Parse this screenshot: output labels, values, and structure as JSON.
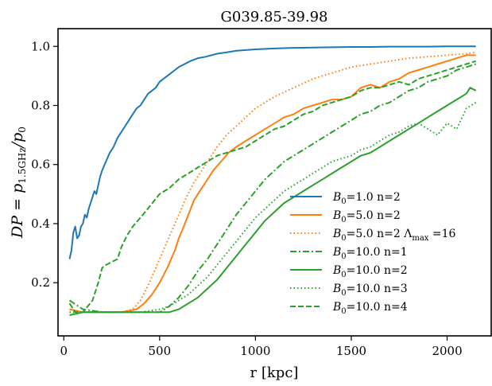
{
  "chart_data": {
    "type": "line",
    "title": "G039.85-39.98",
    "xlabel": "r [kpc]",
    "ylabel": {
      "main": "DP = p",
      "sub": "1.5GHz",
      "rest": "/p",
      "sub2": "0"
    },
    "xlim": [
      -30,
      2230
    ],
    "ylim": [
      0.02,
      1.06
    ],
    "xticks": [
      0,
      500,
      1000,
      1500,
      2000
    ],
    "yticks": [
      0.2,
      0.4,
      0.6,
      0.8,
      1.0
    ],
    "xtick_labels": [
      "0",
      "500",
      "1000",
      "1500",
      "2000"
    ],
    "ytick_labels": [
      "0.2",
      "0.4",
      "0.6",
      "0.8",
      "1.0"
    ],
    "grid": false,
    "legend_position": "lower-right",
    "series": [
      {
        "name": "B0=1.0 n=2",
        "legend": {
          "b": "B",
          "bsub": "0",
          "rest": "=1.0 n=2"
        },
        "color": "#1f77b4",
        "style": "solid",
        "x": [
          30,
          40,
          50,
          60,
          70,
          80,
          90,
          100,
          110,
          120,
          130,
          140,
          150,
          160,
          170,
          180,
          190,
          200,
          220,
          240,
          260,
          280,
          300,
          320,
          340,
          360,
          380,
          400,
          420,
          440,
          460,
          480,
          500,
          520,
          540,
          560,
          580,
          600,
          630,
          660,
          700,
          740,
          800,
          850,
          900,
          1000,
          1100,
          1200,
          1300,
          1400,
          1500,
          1600,
          1700,
          1800,
          1900,
          2000,
          2100,
          2150
        ],
        "y": [
          0.28,
          0.31,
          0.37,
          0.39,
          0.35,
          0.36,
          0.39,
          0.4,
          0.43,
          0.42,
          0.45,
          0.47,
          0.49,
          0.51,
          0.5,
          0.53,
          0.56,
          0.58,
          0.61,
          0.64,
          0.66,
          0.69,
          0.71,
          0.73,
          0.75,
          0.77,
          0.79,
          0.8,
          0.82,
          0.84,
          0.85,
          0.86,
          0.88,
          0.89,
          0.9,
          0.91,
          0.92,
          0.93,
          0.94,
          0.95,
          0.96,
          0.965,
          0.975,
          0.98,
          0.985,
          0.99,
          0.993,
          0.995,
          0.996,
          0.997,
          0.998,
          0.998,
          0.999,
          0.999,
          0.999,
          1.0,
          1.0,
          1.0
        ]
      },
      {
        "name": "B0=5.0 n=2",
        "legend": {
          "b": "B",
          "bsub": "0",
          "rest": "=5.0 n=2"
        },
        "color": "#ff7f0e",
        "style": "solid",
        "x": [
          30,
          100,
          200,
          300,
          380,
          420,
          460,
          500,
          540,
          580,
          600,
          620,
          650,
          680,
          700,
          740,
          780,
          820,
          860,
          900,
          950,
          1000,
          1050,
          1100,
          1150,
          1200,
          1250,
          1300,
          1350,
          1400,
          1450,
          1500,
          1550,
          1600,
          1650,
          1700,
          1750,
          1800,
          1850,
          1900,
          1950,
          2000,
          2050,
          2100,
          2150
        ],
        "y": [
          0.11,
          0.1,
          0.1,
          0.1,
          0.11,
          0.13,
          0.16,
          0.2,
          0.25,
          0.31,
          0.35,
          0.38,
          0.43,
          0.48,
          0.5,
          0.54,
          0.58,
          0.61,
          0.64,
          0.66,
          0.68,
          0.7,
          0.72,
          0.74,
          0.76,
          0.77,
          0.79,
          0.8,
          0.81,
          0.82,
          0.82,
          0.83,
          0.86,
          0.87,
          0.86,
          0.88,
          0.89,
          0.91,
          0.92,
          0.93,
          0.94,
          0.95,
          0.96,
          0.97,
          0.97
        ]
      },
      {
        "name": "B0=5.0 n=2 Λmax =16",
        "legend": {
          "b": "B",
          "bsub": "0",
          "rest": "=5.0 n=2 Λ",
          "sub2": "max",
          "rest2": " =16"
        },
        "color": "#ff7f0e",
        "style": "dotted",
        "x": [
          30,
          100,
          200,
          300,
          360,
          400,
          440,
          480,
          520,
          560,
          600,
          640,
          680,
          720,
          760,
          800,
          850,
          900,
          950,
          1000,
          1050,
          1100,
          1200,
          1300,
          1400,
          1500,
          1600,
          1700,
          1800,
          1900,
          2000,
          2100,
          2150
        ],
        "y": [
          0.11,
          0.1,
          0.1,
          0.1,
          0.11,
          0.14,
          0.19,
          0.25,
          0.31,
          0.37,
          0.43,
          0.49,
          0.54,
          0.58,
          0.62,
          0.66,
          0.7,
          0.73,
          0.76,
          0.79,
          0.81,
          0.83,
          0.86,
          0.89,
          0.91,
          0.93,
          0.94,
          0.95,
          0.96,
          0.965,
          0.97,
          0.975,
          0.98
        ]
      },
      {
        "name": "B0=10.0 n=1",
        "legend": {
          "b": "B",
          "bsub": "0",
          "rest": "=10.0 n=1"
        },
        "color": "#2ca02c",
        "style": "dashdot",
        "x": [
          30,
          100,
          200,
          300,
          400,
          500,
          550,
          600,
          650,
          700,
          750,
          800,
          850,
          900,
          950,
          1000,
          1050,
          1100,
          1150,
          1200,
          1250,
          1300,
          1350,
          1400,
          1450,
          1500,
          1550,
          1600,
          1650,
          1700,
          1750,
          1800,
          1850,
          1900,
          1950,
          2000,
          2050,
          2100,
          2150
        ],
        "y": [
          0.14,
          0.11,
          0.1,
          0.1,
          0.1,
          0.1,
          0.12,
          0.15,
          0.19,
          0.24,
          0.28,
          0.33,
          0.38,
          0.43,
          0.47,
          0.51,
          0.55,
          0.58,
          0.61,
          0.63,
          0.65,
          0.67,
          0.69,
          0.71,
          0.73,
          0.75,
          0.77,
          0.78,
          0.8,
          0.81,
          0.83,
          0.85,
          0.86,
          0.88,
          0.89,
          0.9,
          0.92,
          0.93,
          0.94
        ]
      },
      {
        "name": "B0=10.0 n=2",
        "legend": {
          "b": "B",
          "bsub": "0",
          "rest": "=10.0 n=2"
        },
        "color": "#2ca02c",
        "style": "solid",
        "x": [
          30,
          100,
          200,
          300,
          400,
          500,
          550,
          600,
          650,
          700,
          750,
          800,
          850,
          900,
          950,
          1000,
          1050,
          1100,
          1150,
          1200,
          1250,
          1300,
          1350,
          1400,
          1450,
          1500,
          1550,
          1600,
          1650,
          1700,
          1750,
          1800,
          1850,
          1900,
          1950,
          2000,
          2050,
          2100,
          2120,
          2150
        ],
        "y": [
          0.09,
          0.1,
          0.1,
          0.1,
          0.1,
          0.1,
          0.1,
          0.11,
          0.13,
          0.15,
          0.18,
          0.21,
          0.25,
          0.29,
          0.33,
          0.37,
          0.41,
          0.44,
          0.47,
          0.49,
          0.51,
          0.53,
          0.55,
          0.57,
          0.59,
          0.61,
          0.63,
          0.64,
          0.66,
          0.68,
          0.7,
          0.72,
          0.74,
          0.76,
          0.78,
          0.8,
          0.82,
          0.84,
          0.86,
          0.85
        ]
      },
      {
        "name": "B0=10.0 n=3",
        "legend": {
          "b": "B",
          "bsub": "0",
          "rest": "=10.0 n=3"
        },
        "color": "#2ca02c",
        "style": "dotted",
        "x": [
          30,
          100,
          200,
          300,
          400,
          500,
          550,
          600,
          650,
          700,
          750,
          800,
          850,
          900,
          950,
          1000,
          1050,
          1100,
          1150,
          1200,
          1250,
          1300,
          1350,
          1400,
          1450,
          1500,
          1550,
          1600,
          1650,
          1700,
          1750,
          1800,
          1850,
          1900,
          1950,
          2000,
          2050,
          2100,
          2150
        ],
        "y": [
          0.1,
          0.1,
          0.1,
          0.1,
          0.1,
          0.11,
          0.12,
          0.14,
          0.16,
          0.19,
          0.22,
          0.26,
          0.3,
          0.34,
          0.38,
          0.42,
          0.45,
          0.48,
          0.51,
          0.53,
          0.55,
          0.57,
          0.59,
          0.61,
          0.62,
          0.63,
          0.65,
          0.66,
          0.68,
          0.7,
          0.71,
          0.73,
          0.74,
          0.72,
          0.7,
          0.74,
          0.72,
          0.79,
          0.81
        ]
      },
      {
        "name": "B0=10.0 n=4",
        "legend": {
          "b": "B",
          "bsub": "0",
          "rest": "=10.0 n=4"
        },
        "color": "#2ca02c",
        "style": "dashed",
        "x": [
          30,
          60,
          100,
          150,
          180,
          200,
          220,
          250,
          280,
          300,
          330,
          360,
          400,
          450,
          500,
          550,
          600,
          650,
          700,
          750,
          800,
          850,
          900,
          950,
          1000,
          1050,
          1100,
          1150,
          1200,
          1250,
          1300,
          1350,
          1400,
          1450,
          1500,
          1550,
          1600,
          1650,
          1700,
          1750,
          1800,
          1850,
          1900,
          1950,
          2000,
          2050,
          2100,
          2150
        ],
        "y": [
          0.13,
          0.1,
          0.1,
          0.14,
          0.2,
          0.25,
          0.26,
          0.27,
          0.28,
          0.32,
          0.36,
          0.39,
          0.42,
          0.46,
          0.5,
          0.52,
          0.55,
          0.57,
          0.59,
          0.61,
          0.63,
          0.64,
          0.65,
          0.66,
          0.68,
          0.7,
          0.72,
          0.73,
          0.75,
          0.77,
          0.78,
          0.8,
          0.81,
          0.82,
          0.83,
          0.85,
          0.86,
          0.86,
          0.87,
          0.88,
          0.87,
          0.89,
          0.9,
          0.91,
          0.92,
          0.93,
          0.94,
          0.95
        ]
      }
    ]
  }
}
